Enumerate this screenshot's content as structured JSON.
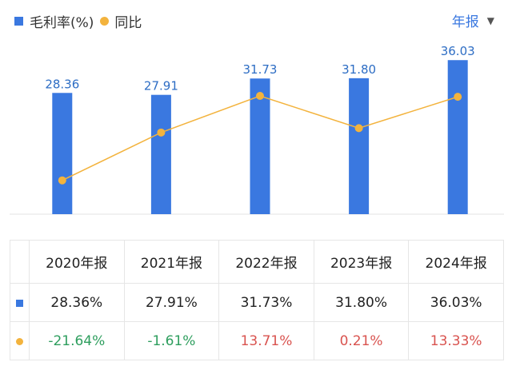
{
  "legend": {
    "bar_label": "毛利率(%)",
    "line_label": "同比"
  },
  "period_selector": {
    "label": "年报",
    "caret": "▼"
  },
  "colors": {
    "bar": "#3a78e0",
    "line": "#f3b33d",
    "positive": "#d9534f",
    "negative": "#2e9e5e"
  },
  "chart_data": {
    "type": "bar",
    "categories": [
      "2020年报",
      "2021年报",
      "2022年报",
      "2023年报",
      "2024年报"
    ],
    "series": [
      {
        "name": "毛利率(%)",
        "type": "bar",
        "values": [
          28.36,
          27.91,
          31.73,
          31.8,
          36.03
        ],
        "value_labels": [
          "28.36",
          "27.91",
          "31.73",
          "31.80",
          "36.03"
        ]
      },
      {
        "name": "同比",
        "type": "line",
        "values": [
          -21.64,
          -1.61,
          13.71,
          0.21,
          13.33
        ]
      }
    ],
    "title": "",
    "xlabel": "",
    "ylabel": "",
    "grid": false
  },
  "table": {
    "headers": [
      "2020年报",
      "2021年报",
      "2022年报",
      "2023年报",
      "2024年报"
    ],
    "row_margin": [
      "28.36%",
      "27.91%",
      "31.73%",
      "31.80%",
      "36.03%"
    ],
    "row_yoy": [
      {
        "text": "-21.64%",
        "sign": "neg"
      },
      {
        "text": "-1.61%",
        "sign": "neg"
      },
      {
        "text": "13.71%",
        "sign": "pos"
      },
      {
        "text": "0.21%",
        "sign": "pos"
      },
      {
        "text": "13.33%",
        "sign": "pos"
      }
    ]
  }
}
